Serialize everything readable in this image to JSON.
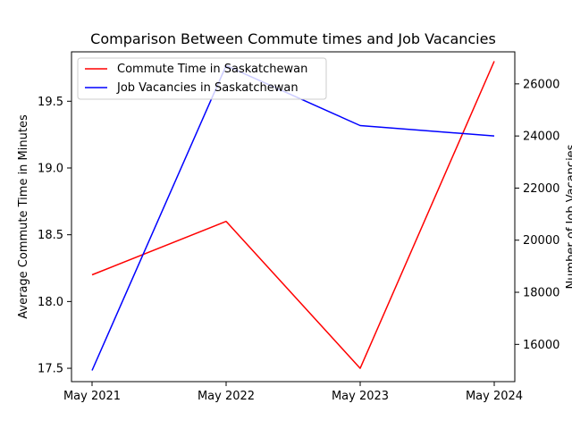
{
  "chart_data": {
    "type": "line",
    "title": "Comparison Between Commute times and Job Vacancies",
    "categories": [
      "May 2021",
      "May 2022",
      "May 2023",
      "May 2024"
    ],
    "y_left": {
      "label": "Average Commute Time in Minutes",
      "ylim": [
        17.4,
        19.87
      ],
      "ticks": [
        "17.5",
        "18.0",
        "18.5",
        "19.0",
        "19.5"
      ],
      "tick_values": [
        17.5,
        18.0,
        18.5,
        19.0,
        19.5
      ]
    },
    "y_right": {
      "label": "Number of Job Vacancies",
      "ylim": [
        14570,
        27230
      ],
      "ticks": [
        "16000",
        "18000",
        "20000",
        "22000",
        "24000",
        "26000"
      ],
      "tick_values": [
        16000,
        18000,
        20000,
        22000,
        24000,
        26000
      ]
    },
    "series": [
      {
        "name": "Commute Time in Saskatchewan",
        "axis": "left",
        "color": "#ff0000",
        "values": [
          18.2,
          18.6,
          17.5,
          19.8
        ]
      },
      {
        "name": "Job Vacancies in Saskatchewan",
        "axis": "right",
        "color": "#0000ff",
        "values": [
          15000,
          26700,
          24400,
          24000
        ]
      }
    ],
    "legend_position": "upper-left",
    "grid": false
  }
}
